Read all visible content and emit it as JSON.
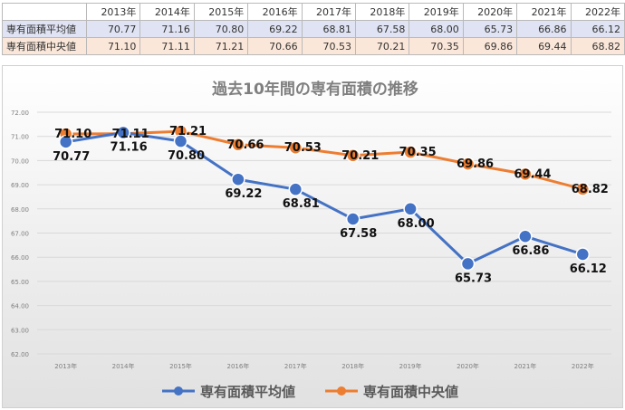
{
  "table": {
    "years": [
      "2013年",
      "2014年",
      "2015年",
      "2016年",
      "2017年",
      "2018年",
      "2019年",
      "2020年",
      "2021年",
      "2022年"
    ],
    "rows": [
      {
        "label": "専有面積平均値",
        "values": [
          "70.77",
          "71.16",
          "70.80",
          "69.22",
          "68.81",
          "67.58",
          "68.00",
          "65.73",
          "66.86",
          "66.12"
        ]
      },
      {
        "label": "専有面積中央値",
        "values": [
          "71.10",
          "71.11",
          "71.21",
          "70.66",
          "70.53",
          "70.21",
          "70.35",
          "69.86",
          "69.44",
          "68.82"
        ]
      }
    ]
  },
  "chart_data": {
    "type": "line",
    "title": "過去10年間の専有面積の推移",
    "categories": [
      "2013年",
      "2014年",
      "2015年",
      "2016年",
      "2017年",
      "2018年",
      "2019年",
      "2020年",
      "2021年",
      "2022年"
    ],
    "ylim": [
      62,
      72
    ],
    "yticks": [
      "62.00",
      "63.00",
      "64.00",
      "65.00",
      "66.00",
      "67.00",
      "68.00",
      "69.00",
      "70.00",
      "71.00",
      "72.00"
    ],
    "legend_position": "bottom",
    "series": [
      {
        "name": "専有面積平均値",
        "color": "#4472C4",
        "values": [
          70.77,
          71.16,
          70.8,
          69.22,
          68.81,
          67.58,
          68.0,
          65.73,
          66.86,
          66.12
        ],
        "labels": [
          "70.77",
          "71.16",
          "70.80",
          "69.22",
          "68.81",
          "67.58",
          "68.00",
          "65.73",
          "66.86",
          "66.12"
        ]
      },
      {
        "name": "専有面積中央値",
        "color": "#ED7D31",
        "values": [
          71.1,
          71.11,
          71.21,
          70.66,
          70.53,
          70.21,
          70.35,
          69.86,
          69.44,
          68.82
        ],
        "labels": [
          "71.10",
          "71.11",
          "71.21",
          "70.66",
          "70.53",
          "70.21",
          "70.35",
          "69.86",
          "69.44",
          "68.82"
        ]
      }
    ]
  }
}
